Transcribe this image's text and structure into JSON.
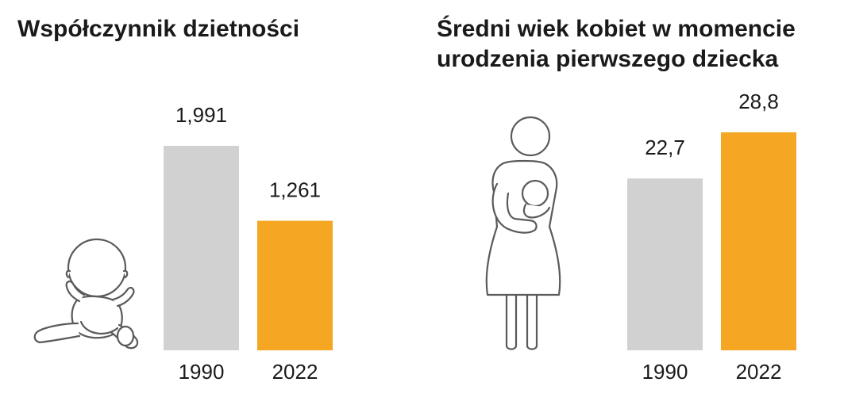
{
  "colors": {
    "bar_1990": "#d1d1d1",
    "bar_2022": "#f5a623",
    "icon_stroke": "#5a5a5a"
  },
  "icons": [
    "baby-icon",
    "mother-with-baby-icon"
  ],
  "chart_data": [
    {
      "type": "bar",
      "title": "Współczynnik dzietności",
      "categories": [
        "1990",
        "2022"
      ],
      "values": [
        1.991,
        1.261
      ],
      "value_labels": [
        "1,991",
        "1,261"
      ],
      "xlabel": "",
      "ylabel": "",
      "grid": false
    },
    {
      "type": "bar",
      "title_lines": [
        "Średni wiek kobiet w momencie",
        "urodzenia pierwszego dziecka"
      ],
      "categories": [
        "1990",
        "2022"
      ],
      "values": [
        22.7,
        28.8
      ],
      "value_labels": [
        "22,7",
        "28,8"
      ],
      "xlabel": "",
      "ylabel": "",
      "grid": false
    }
  ]
}
